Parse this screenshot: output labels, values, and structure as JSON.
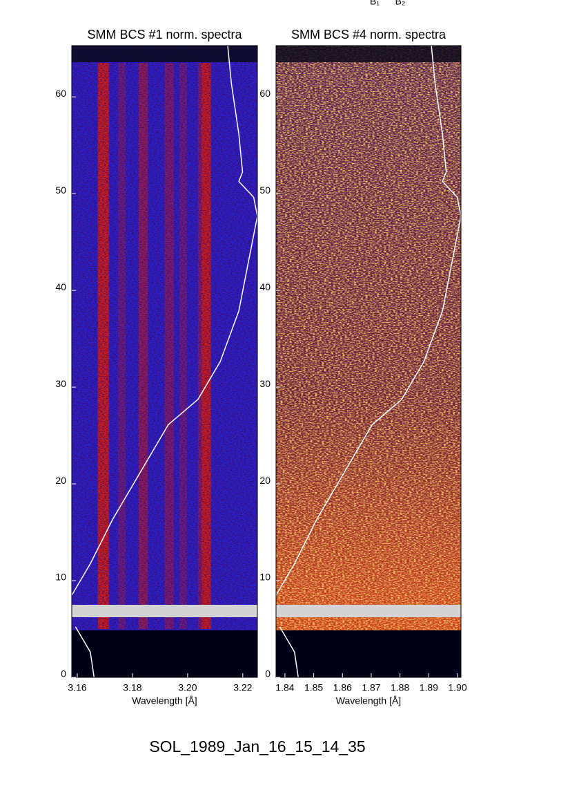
{
  "top_labels": [
    "B₁",
    "B₂"
  ],
  "chart_data": [
    {
      "type": "heatmap",
      "title": "SMM BCS #1 norm. spectra",
      "xlabel": "Wavelength [Å]",
      "xlim": [
        3.158,
        3.2253
      ],
      "xticks": [
        3.16,
        3.18,
        {
          "value": 3.2,
          "label": "3.20"
        },
        3.22
      ],
      "ylim": [
        0,
        65.3
      ],
      "yticks": [
        0,
        10,
        20,
        30,
        40,
        50,
        60
      ]
    },
    {
      "type": "heatmap",
      "title": "SMM BCS #4 norm. spectra",
      "xlabel": "Wavelength [Å]",
      "xlim": [
        1.8369,
        1.9012
      ],
      "xticks": [
        1.84,
        1.85,
        1.86,
        1.87,
        1.88,
        1.89,
        {
          "value": 1.9,
          "label": "1.90"
        }
      ],
      "ylim": [
        0,
        65.3
      ],
      "yticks": [
        0,
        10,
        20,
        30,
        40,
        50,
        60
      ]
    }
  ],
  "footer": "SOL_1989_Jan_16_15_14_35"
}
